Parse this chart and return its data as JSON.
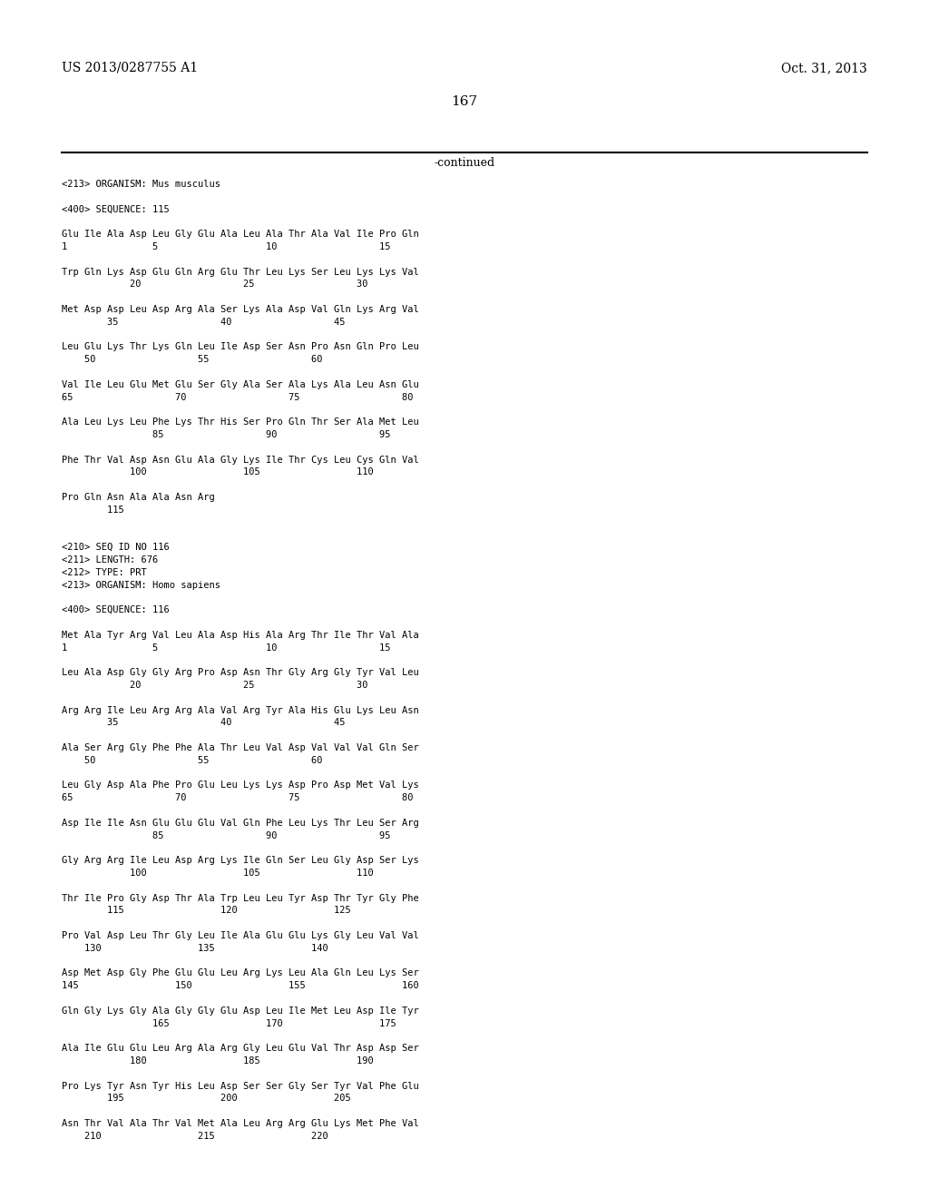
{
  "header_left": "US 2013/0287755 A1",
  "header_right": "Oct. 31, 2013",
  "page_number": "167",
  "continued_label": "-continued",
  "background_color": "#ffffff",
  "text_color": "#000000",
  "lines": [
    "<213> ORGANISM: Mus musculus",
    "",
    "<400> SEQUENCE: 115",
    "",
    "Glu Ile Ala Asp Leu Gly Glu Ala Leu Ala Thr Ala Val Ile Pro Gln",
    "1               5                   10                  15",
    "",
    "Trp Gln Lys Asp Glu Gln Arg Glu Thr Leu Lys Ser Leu Lys Lys Val",
    "            20                  25                  30",
    "",
    "Met Asp Asp Leu Asp Arg Ala Ser Lys Ala Asp Val Gln Lys Arg Val",
    "        35                  40                  45",
    "",
    "Leu Glu Lys Thr Lys Gln Leu Ile Asp Ser Asn Pro Asn Gln Pro Leu",
    "    50                  55                  60",
    "",
    "Val Ile Leu Glu Met Glu Ser Gly Ala Ser Ala Lys Ala Leu Asn Glu",
    "65                  70                  75                  80",
    "",
    "Ala Leu Lys Leu Phe Lys Thr His Ser Pro Gln Thr Ser Ala Met Leu",
    "                85                  90                  95",
    "",
    "Phe Thr Val Asp Asn Glu Ala Gly Lys Ile Thr Cys Leu Cys Gln Val",
    "            100                 105                 110",
    "",
    "Pro Gln Asn Ala Ala Asn Arg",
    "        115",
    "",
    "",
    "<210> SEQ ID NO 116",
    "<211> LENGTH: 676",
    "<212> TYPE: PRT",
    "<213> ORGANISM: Homo sapiens",
    "",
    "<400> SEQUENCE: 116",
    "",
    "Met Ala Tyr Arg Val Leu Ala Asp His Ala Arg Thr Ile Thr Val Ala",
    "1               5                   10                  15",
    "",
    "Leu Ala Asp Gly Gly Arg Pro Asp Asn Thr Gly Arg Gly Tyr Val Leu",
    "            20                  25                  30",
    "",
    "Arg Arg Ile Leu Arg Arg Ala Val Arg Tyr Ala His Glu Lys Leu Asn",
    "        35                  40                  45",
    "",
    "Ala Ser Arg Gly Phe Phe Ala Thr Leu Val Asp Val Val Val Gln Ser",
    "    50                  55                  60",
    "",
    "Leu Gly Asp Ala Phe Pro Glu Leu Lys Lys Asp Pro Asp Met Val Lys",
    "65                  70                  75                  80",
    "",
    "Asp Ile Ile Asn Glu Glu Glu Val Gln Phe Leu Lys Thr Leu Ser Arg",
    "                85                  90                  95",
    "",
    "Gly Arg Arg Ile Leu Asp Arg Lys Ile Gln Ser Leu Gly Asp Ser Lys",
    "            100                 105                 110",
    "",
    "Thr Ile Pro Gly Asp Thr Ala Trp Leu Leu Tyr Asp Thr Tyr Gly Phe",
    "        115                 120                 125",
    "",
    "Pro Val Asp Leu Thr Gly Leu Ile Ala Glu Glu Lys Gly Leu Val Val",
    "    130                 135                 140",
    "",
    "Asp Met Asp Gly Phe Glu Glu Leu Arg Lys Leu Ala Gln Leu Lys Ser",
    "145                 150                 155                 160",
    "",
    "Gln Gly Lys Gly Ala Gly Gly Glu Asp Leu Ile Met Leu Asp Ile Tyr",
    "                165                 170                 175",
    "",
    "Ala Ile Glu Glu Leu Arg Ala Arg Gly Leu Glu Val Thr Asp Asp Ser",
    "            180                 185                 190",
    "",
    "Pro Lys Tyr Asn Tyr His Leu Asp Ser Ser Gly Ser Tyr Val Phe Glu",
    "        195                 200                 205",
    "",
    "Asn Thr Val Ala Thr Val Met Ala Leu Arg Arg Glu Lys Met Phe Val",
    "    210                 215                 220"
  ]
}
